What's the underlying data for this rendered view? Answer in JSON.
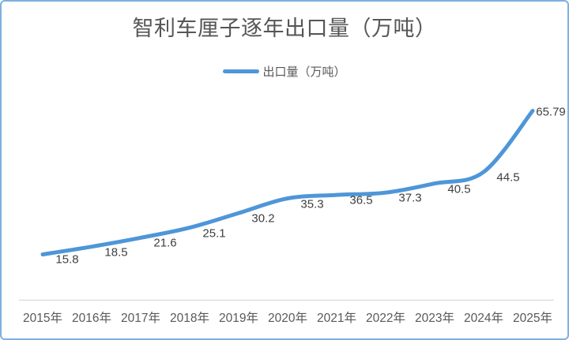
{
  "chart": {
    "title": "智利车厘子逐年出口量（万吨）",
    "legend_label": "出口量（万吨）"
  },
  "chart_data": {
    "type": "line",
    "title": "智利车厘子逐年出口量（万吨）",
    "categories": [
      "2015年",
      "2016年",
      "2017年",
      "2018年",
      "2019年",
      "2020年",
      "2021年",
      "2022年",
      "2023年",
      "2024年",
      "2025年"
    ],
    "series": [
      {
        "name": "出口量（万吨）",
        "values": [
          15.8,
          18.5,
          21.6,
          25.1,
          30.2,
          35.3,
          36.5,
          37.3,
          40.5,
          44.5,
          65.79
        ],
        "labels": [
          "15.8",
          "18.5",
          "21.6",
          "25.1",
          "30.2",
          "35.3",
          "36.5",
          "37.3",
          "40.5",
          "44.5",
          "65.79"
        ],
        "color": "#4E96D8"
      }
    ],
    "xlabel": "",
    "ylabel": "",
    "ylim": [
      0,
      70
    ],
    "grid": false,
    "y_axis_visible": false,
    "x_axis_line_visible": true,
    "legend_position": "top",
    "smooth": true,
    "data_labels_visible": true
  },
  "colors": {
    "accent_blue": "#4E96D8",
    "frame_border": "#7FB0E0",
    "title_text": "#565656",
    "axis_text": "#595959",
    "data_label_text": "#3f3f3f",
    "axis_line": "#D9D9D9"
  }
}
